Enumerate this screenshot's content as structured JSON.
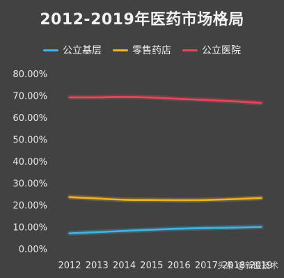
{
  "chart_data": {
    "type": "line",
    "title": "2012-2019年医药市场格局",
    "x": [
      "2012",
      "2013",
      "2014",
      "2015",
      "2016",
      "2017",
      "2018",
      "2019"
    ],
    "ylim": [
      0,
      80
    ],
    "yticks": [
      "0.00%",
      "10.00%",
      "20.00%",
      "30.00%",
      "40.00%",
      "50.00%",
      "60.00%",
      "70.00%",
      "80.00%"
    ],
    "grid": false,
    "legend_position": "top",
    "series": [
      {
        "name": "公立基层",
        "color": "#41b6e6",
        "values": [
          7.1,
          7.6,
          8.2,
          8.7,
          9.2,
          9.5,
          9.7,
          10.0
        ]
      },
      {
        "name": "零售药店",
        "color": "#f0b323",
        "values": [
          23.6,
          23.0,
          22.4,
          22.3,
          22.2,
          22.3,
          22.7,
          23.2
        ]
      },
      {
        "name": "公立医院",
        "color": "#e8475a",
        "values": [
          69.2,
          69.2,
          69.4,
          69.1,
          68.5,
          68.0,
          67.4,
          66.6
        ]
      }
    ]
  },
  "watermark": "头条 @新医技术"
}
